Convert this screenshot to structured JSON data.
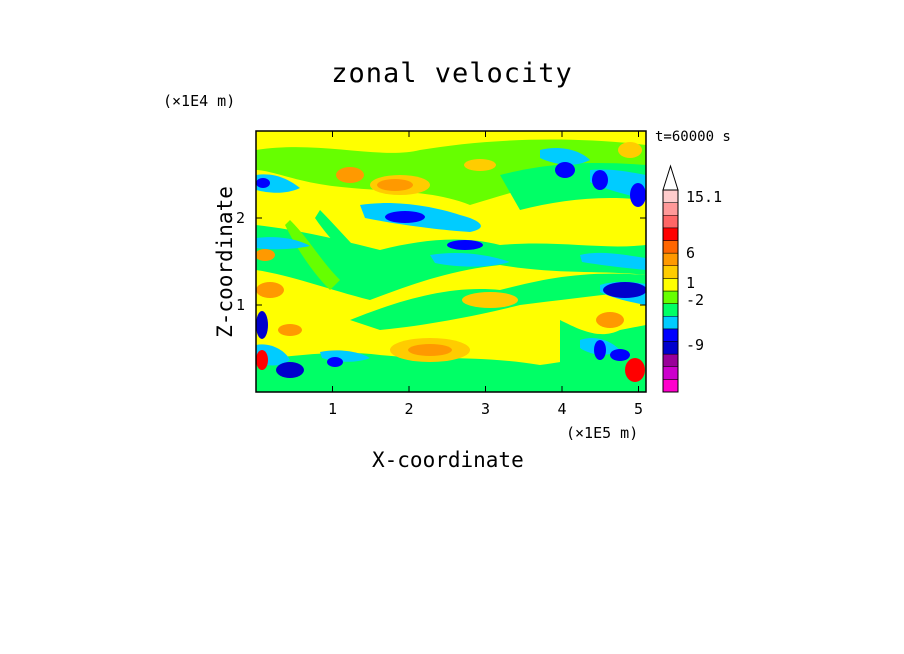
{
  "chart_data": {
    "type": "heatmap",
    "title": "zonal velocity",
    "time_label": "t=60000 s",
    "xlabel": "X-coordinate",
    "ylabel": "Z-coordinate",
    "x_unit": "(×1E5 m)",
    "y_unit": "(×1E4 m)",
    "xlim": [
      0,
      5.1
    ],
    "ylim": [
      0,
      3.0
    ],
    "x_ticks": [
      "1",
      "2",
      "3",
      "4",
      "5"
    ],
    "y_ticks": [
      "1",
      "2"
    ],
    "colorbar": {
      "tick_labels": [
        "15.1",
        "6",
        "1",
        "-2",
        "-9"
      ],
      "colors": [
        "#ff00cc",
        "#cc00cc",
        "#990099",
        "#0000cc",
        "#0000ff",
        "#00ccff",
        "#00ff66",
        "#66ff00",
        "#ffff00",
        "#ffcc00",
        "#ff9900",
        "#ff6600",
        "#ff0000",
        "#ff6666",
        "#ff9999",
        "#ffcccc"
      ],
      "extends": "max"
    }
  }
}
